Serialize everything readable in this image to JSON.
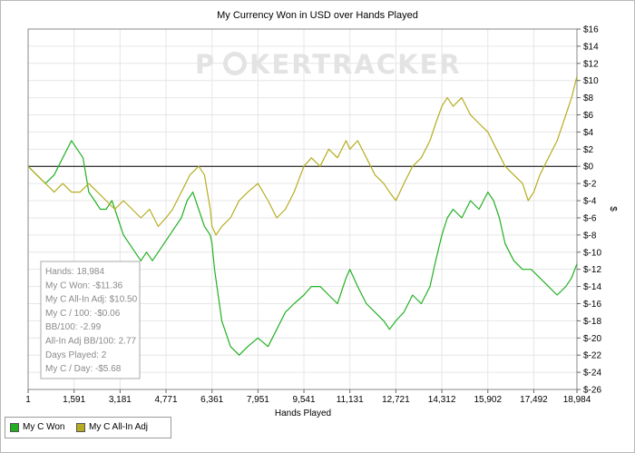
{
  "chart_data": {
    "type": "line",
    "title": "My Currency Won in USD over Hands Played",
    "xlabel": "Hands Played",
    "ylabel": "$",
    "watermark_left": "P",
    "watermark_right": "KERTRACKER",
    "x_ticks": [
      "1",
      "1,591",
      "3,181",
      "4,771",
      "6,361",
      "7,951",
      "9,541",
      "11,131",
      "12,721",
      "14,312",
      "15,902",
      "17,492",
      "18,984"
    ],
    "x_tick_values": [
      1,
      1591,
      3181,
      4771,
      6361,
      7951,
      9541,
      11131,
      12721,
      14312,
      15902,
      17492,
      18984
    ],
    "xlim": [
      1,
      18984
    ],
    "ylim": [
      -26,
      16
    ],
    "y_ticks": [
      16,
      14,
      12,
      10,
      8,
      6,
      4,
      2,
      0,
      -2,
      -4,
      -6,
      -8,
      -10,
      -12,
      -14,
      -16,
      -18,
      -20,
      -22,
      -24,
      -26
    ],
    "y_tick_labels": [
      "$16",
      "$14",
      "$12",
      "$10",
      "$8",
      "$6",
      "$4",
      "$2",
      "$0",
      "$-2",
      "$-4",
      "$-6",
      "$-8",
      "$-10",
      "$-12",
      "$-14",
      "$-16",
      "$-18",
      "$-20",
      "$-22",
      "$-24",
      "$-26"
    ],
    "grid": true,
    "y_axis_side": "right",
    "legend_position": "bottom-left",
    "series": [
      {
        "name": "My C Won",
        "color": "#22b022",
        "x": [
          1,
          300,
          600,
          900,
          1200,
          1500,
          1700,
          1900,
          2100,
          2300,
          2500,
          2700,
          2900,
          3100,
          3300,
          3500,
          3700,
          3900,
          4100,
          4300,
          4500,
          4700,
          4900,
          5100,
          5300,
          5500,
          5700,
          5900,
          6100,
          6300,
          6360,
          6450,
          6700,
          7000,
          7300,
          7600,
          7950,
          8300,
          8600,
          8900,
          9200,
          9541,
          9800,
          10100,
          10400,
          10700,
          11000,
          11131,
          11400,
          11700,
          12000,
          12300,
          12500,
          12721,
          13000,
          13300,
          13600,
          13900,
          14100,
          14312,
          14500,
          14700,
          15000,
          15300,
          15600,
          15902,
          16100,
          16300,
          16500,
          16800,
          17100,
          17400,
          17700,
          18000,
          18300,
          18600,
          18800,
          18984
        ],
        "y": [
          0,
          -1,
          -2,
          -1,
          1,
          3,
          2,
          1,
          -3,
          -4,
          -5,
          -5,
          -4,
          -6,
          -8,
          -9,
          -10,
          -11,
          -10,
          -11,
          -10,
          -9,
          -8,
          -7,
          -6,
          -4,
          -3,
          -5,
          -7,
          -8,
          -9,
          -12,
          -18,
          -21,
          -22,
          -21,
          -20,
          -21,
          -19,
          -17,
          -16,
          -15,
          -14,
          -14,
          -15,
          -16,
          -13,
          -12,
          -14,
          -16,
          -17,
          -18,
          -19,
          -18,
          -17,
          -15,
          -16,
          -14,
          -11,
          -8,
          -6,
          -5,
          -6,
          -4,
          -5,
          -3,
          -4,
          -6,
          -9,
          -11,
          -12,
          -12,
          -13,
          -14,
          -15,
          -14,
          -13,
          -11.36
        ]
      },
      {
        "name": "My C All-In Adj",
        "color": "#b5ad1f",
        "x": [
          1,
          300,
          600,
          900,
          1200,
          1500,
          1800,
          2100,
          2400,
          2700,
          3000,
          3300,
          3600,
          3900,
          4200,
          4500,
          4771,
          5000,
          5300,
          5600,
          5900,
          6100,
          6200,
          6300,
          6361,
          6500,
          6700,
          7000,
          7300,
          7600,
          7951,
          8300,
          8600,
          8900,
          9200,
          9541,
          9800,
          10100,
          10400,
          10700,
          11000,
          11131,
          11400,
          11700,
          12000,
          12300,
          12500,
          12721,
          13000,
          13300,
          13600,
          13900,
          14100,
          14312,
          14500,
          14700,
          15000,
          15300,
          15600,
          15902,
          16200,
          16500,
          16800,
          17100,
          17300,
          17492,
          17700,
          18000,
          18300,
          18600,
          18800,
          18984
        ],
        "y": [
          0,
          -1,
          -2,
          -3,
          -2,
          -3,
          -3,
          -2,
          -3,
          -4,
          -5,
          -4,
          -5,
          -6,
          -5,
          -7,
          -6,
          -5,
          -3,
          -1,
          0,
          -1,
          -3,
          -5,
          -7,
          -8,
          -7,
          -6,
          -4,
          -3,
          -2,
          -4,
          -6,
          -5,
          -3,
          0,
          1,
          0,
          2,
          1,
          3,
          2,
          3,
          1,
          -1,
          -2,
          -3,
          -4,
          -2,
          0,
          1,
          3,
          5,
          7,
          8,
          7,
          8,
          6,
          5,
          4,
          2,
          0,
          -1,
          -2,
          -4,
          -3,
          -1,
          1,
          3,
          6,
          8,
          10.5
        ]
      }
    ],
    "stats_box": [
      "Hands: 18,984",
      "My C Won: -$11.36",
      "My C All-In Adj: $10.50",
      "My C / 100: -$0.06",
      "BB/100: -2.99",
      "All-In Adj BB/100: 2.77",
      "Days Played: 2",
      "My C / Day: -$5.68"
    ]
  }
}
